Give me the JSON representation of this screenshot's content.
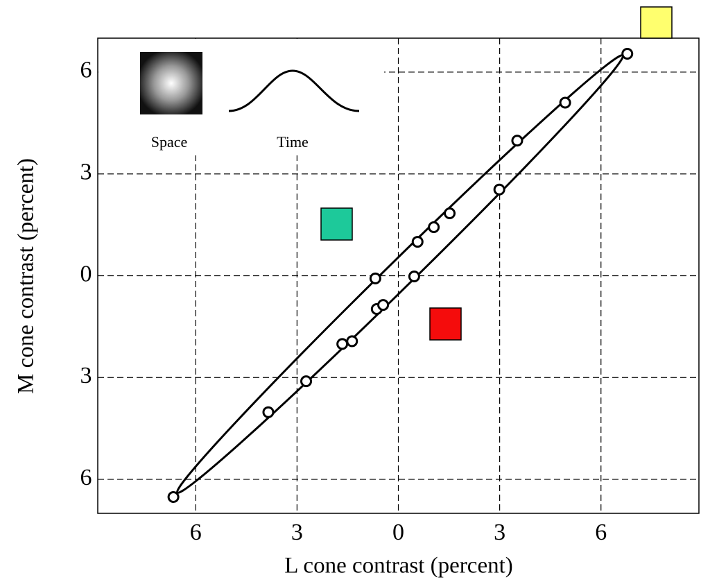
{
  "chart_data": {
    "type": "scatter",
    "x_label": "L cone contrast (percent)",
    "y_label": "M cone contrast (percent)",
    "annotations": [
      "Space",
      "Time"
    ],
    "x": [
      6.78,
      4.94,
      3.52,
      2.99,
      1.52,
      1.05,
      0.57,
      -0.68,
      0.47,
      -0.64,
      -0.45,
      -1.66,
      -1.37,
      -2.73,
      -3.85,
      -6.66
    ],
    "values": [
      6.54,
      5.1,
      3.98,
      2.54,
      1.84,
      1.43,
      1.0,
      -0.08,
      -0.02,
      -0.98,
      -0.86,
      -2.01,
      -1.93,
      -3.11,
      -4.02,
      -6.52
    ],
    "xlim": [
      -8.9,
      8.9
    ],
    "ylim": [
      -7,
      7
    ],
    "xticks": [
      {
        "value": -6,
        "label": "6"
      },
      {
        "value": -3,
        "label": "3"
      },
      0,
      3,
      6
    ],
    "yticks": [
      6,
      3,
      0,
      {
        "value": -3,
        "label": "3"
      },
      {
        "value": -6,
        "label": "6"
      }
    ],
    "grid": true,
    "color": "#000000"
  }
}
